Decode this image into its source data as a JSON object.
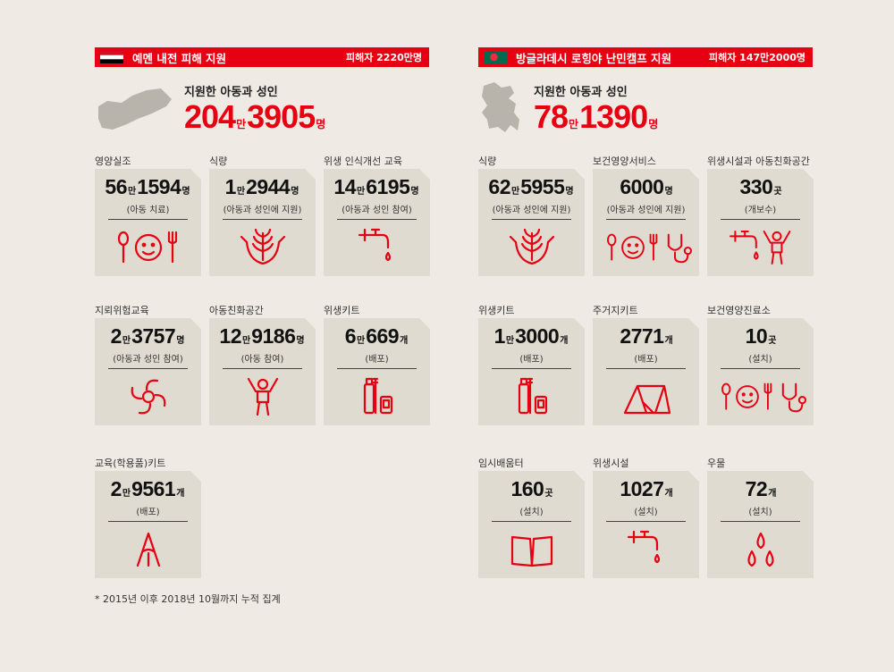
{
  "colors": {
    "accent": "#e60012",
    "background": "#efebe4",
    "card": "#e0dbd0",
    "map": "#b9b4ab"
  },
  "yemen": {
    "title": "예멘 내전 피해 지원",
    "victims": "피해자 2220만명",
    "subtitle": "지원한 아동과 성인",
    "total": {
      "a": "204",
      "u1": "만",
      "b": "3905",
      "u2": "명"
    },
    "items": [
      {
        "category": "영양실조",
        "a": "56",
        "u1": "만",
        "b": "1594",
        "u2": "명",
        "note": "(아동 치료)",
        "icon": "nutrition-icon"
      },
      {
        "category": "식량",
        "a": "1",
        "u1": "만",
        "b": "2944",
        "u2": "명",
        "note": "(아동과 성인에 지원)",
        "icon": "food-hands-icon"
      },
      {
        "category": "위생 인식개선 교육",
        "a": "14",
        "u1": "만",
        "b": "6195",
        "u2": "명",
        "note": "(아동과 성인 참여)",
        "icon": "faucet-icon"
      },
      {
        "category": "지뢰위험교육",
        "a": "2",
        "u1": "만",
        "b": "3757",
        "u2": "명",
        "note": "(아동과 성인 참여)",
        "icon": "mine-icon"
      },
      {
        "category": "아동친화공간",
        "a": "12",
        "u1": "만",
        "b": "9186",
        "u2": "명",
        "note": "(아동 참여)",
        "icon": "child-icon"
      },
      {
        "category": "위생키트",
        "a": "6",
        "u1": "만",
        "b": "669",
        "u2": "개",
        "note": "(배포)",
        "icon": "hygiene-kit-icon"
      },
      {
        "category": "교육(학용품)키트",
        "a": "2",
        "u1": "만",
        "b": "9561",
        "u2": "개",
        "note": "(배포)",
        "icon": "pencil-icon"
      }
    ]
  },
  "bangladesh": {
    "title": "방글라데시 로힝야 난민캠프 지원",
    "victims": "피해자 147만2000명",
    "subtitle": "지원한 아동과 성인",
    "total": {
      "a": "78",
      "u1": "만",
      "b": "1390",
      "u2": "명"
    },
    "items": [
      {
        "category": "식량",
        "a": "62",
        "u1": "만",
        "b": "5955",
        "u2": "명",
        "note": "(아동과 성인에 지원)",
        "icon": "food-hands-icon"
      },
      {
        "category": "보건영양서비스",
        "a": "",
        "u1": "",
        "b": "6000",
        "u2": "명",
        "note": "(아동과 성인에 지원)",
        "icon": "health-nutrition-icon"
      },
      {
        "category": "위생시설과 아동친화공간",
        "a": "",
        "u1": "",
        "b": "330",
        "u2": "곳",
        "note": "(개보수)",
        "icon": "faucet-child-icon"
      },
      {
        "category": "위생키트",
        "a": "1",
        "u1": "만",
        "b": "3000",
        "u2": "개",
        "note": "(배포)",
        "icon": "hygiene-kit-icon"
      },
      {
        "category": "주거지키트",
        "a": "",
        "u1": "",
        "b": "2771",
        "u2": "개",
        "note": "(배포)",
        "icon": "tent-icon"
      },
      {
        "category": "보건영양진료소",
        "a": "",
        "u1": "",
        "b": "10",
        "u2": "곳",
        "note": "(설치)",
        "icon": "health-nutrition-icon"
      },
      {
        "category": "임시배움터",
        "a": "",
        "u1": "",
        "b": "160",
        "u2": "곳",
        "note": "(설치)",
        "icon": "book-icon"
      },
      {
        "category": "위생시설",
        "a": "",
        "u1": "",
        "b": "1027",
        "u2": "개",
        "note": "(설치)",
        "icon": "faucet-icon"
      },
      {
        "category": "우물",
        "a": "",
        "u1": "",
        "b": "72",
        "u2": "개",
        "note": "(설치)",
        "icon": "water-drops-icon"
      }
    ]
  },
  "footnote": "* 2015년 이후 2018년 10월까지 누적 집계"
}
